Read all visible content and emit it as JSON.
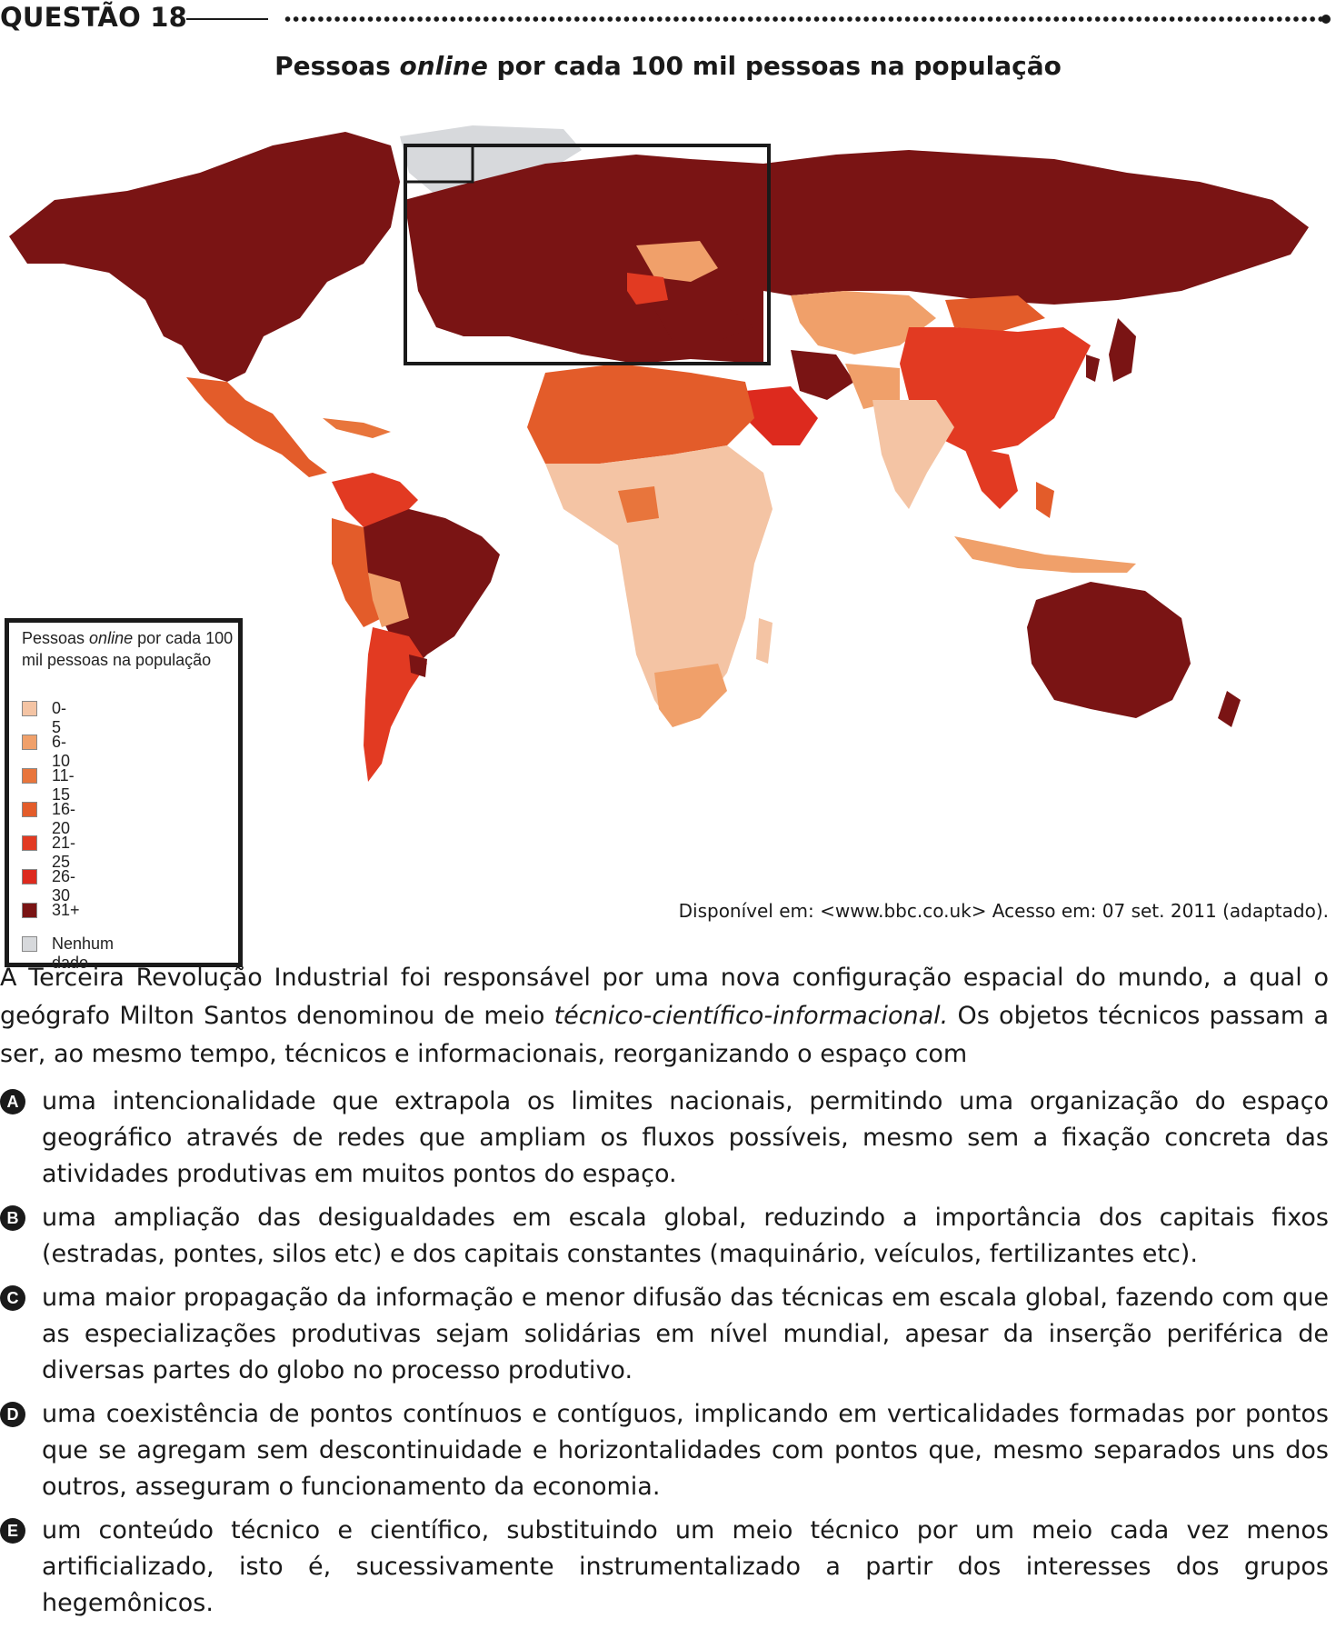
{
  "question": {
    "label": "QUESTÃO 18"
  },
  "map": {
    "title_pre": "Pessoas ",
    "title_em": "online",
    "title_post": " por cada 100 mil pessoas na população",
    "legend": {
      "title_pre": "Pessoas ",
      "title_em": "online",
      "title_post": " por cada 100 mil pessoas na população",
      "items": [
        {
          "label": "0-5",
          "color": "#f4c4a4"
        },
        {
          "label": "6-10",
          "color": "#f0a06a"
        },
        {
          "label": "11-15",
          "color": "#e8753c"
        },
        {
          "label": "16-20",
          "color": "#e35c2a"
        },
        {
          "label": "21-25",
          "color": "#e23a22"
        },
        {
          "label": "26-30",
          "color": "#dd2a1e"
        },
        {
          "label": "31+",
          "color": "#7a1414"
        },
        {
          "label": "Nenhum dado",
          "color": "#d7d9dc"
        }
      ]
    },
    "source": "Disponível em: <www.bbc.co.uk> Acesso em: 07 set. 2011 (adaptado)."
  },
  "text": {
    "p_before": "A Terceira Revolução Industrial foi responsável por uma nova configuração espacial do mundo, a qual o geógrafo Milton Santos denominou de meio ",
    "p_em": "técnico-científico-informacional.",
    "p_after": " Os objetos técnicos passam a ser, ao mesmo tempo, técnicos e informacionais, reorganizando o espaço com"
  },
  "options": [
    {
      "letter": "A",
      "text": "uma intencionalidade que extrapola os limites nacionais, permitindo uma organização do espaço geográfico através de redes que ampliam os fluxos possíveis, mesmo sem a fixação concreta das atividades produtivas em muitos pontos do espaço."
    },
    {
      "letter": "B",
      "text": "uma ampliação das desigualdades em escala global, reduzindo a importância dos capitais fixos (estradas, pontes, silos etc) e dos capitais constantes (maquinário, veículos, fertilizantes etc)."
    },
    {
      "letter": "C",
      "text": "uma maior propagação da informação e menor difusão das técnicas em escala global, fazendo com que as especializações produtivas sejam solidárias em nível mundial, apesar da inserção periférica de diversas partes do globo no processo produtivo."
    },
    {
      "letter": "D",
      "text": "uma coexistência de pontos contínuos e contíguos, implicando em verticalidades formadas por pontos que se agregam sem descontinuidade e horizontalidades com pontos que, mesmo separados uns dos outros, asseguram o funcionamento da economia."
    },
    {
      "letter": "E",
      "text": "um conteúdo técnico e científico, substituindo um meio técnico por um meio cada vez menos artificializado, isto é, sucessivamente instrumentalizado a partir dos interesses dos grupos hegemônicos."
    }
  ]
}
